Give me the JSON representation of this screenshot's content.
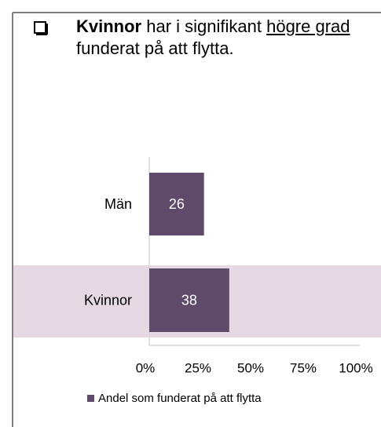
{
  "header": {
    "bold": "Kvinnor",
    "text1": " har i signifikant ",
    "underlined": "högre grad",
    "text2": " funderat på att flytta."
  },
  "chart_data": {
    "type": "barh",
    "categories": [
      "Män",
      "Kvinnor"
    ],
    "series": [
      {
        "name": "Andel som funderat på att flytta",
        "color": "#604a6a",
        "values": [
          26,
          38
        ]
      }
    ],
    "xlim": [
      0,
      100
    ],
    "xticks": [
      {
        "value": 0,
        "label": "0%"
      },
      {
        "value": 25,
        "label": "25%"
      },
      {
        "value": 50,
        "label": "50%"
      },
      {
        "value": 75,
        "label": "75%"
      },
      {
        "value": 100,
        "label": "100%"
      }
    ],
    "legend": "bottom"
  }
}
